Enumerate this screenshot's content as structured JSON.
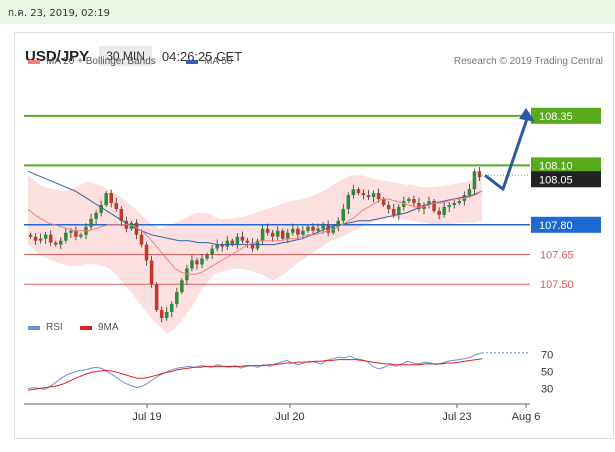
{
  "timestamp": "ก.ค. 23, 2019, 02:19",
  "header": {
    "symbol": "USD/JPY",
    "timeframe": "30 MIN",
    "time": "04:26:25 CET"
  },
  "legend": {
    "ma20": "MA 20 + Bollinger Bands",
    "ma50": "MA 50",
    "rsi": "RSI",
    "ma9": "9MA"
  },
  "research": "Research © 2019 Trading Central",
  "colors": {
    "up": "#2e8b3a",
    "down": "#c0392b",
    "ma20": "#f08080",
    "ma50": "#3a5fa8",
    "band": "#fcd9d9",
    "green": "#5aaa1e",
    "blue": "#1e6ad2",
    "red": "#e35b5b"
  },
  "chart_data": [
    {
      "type": "candlestick",
      "title": "USD/JPY 30 MIN",
      "ylim": [
        107.37,
        108.44
      ],
      "x_ticks": [
        "Jul 19",
        "Jul 20",
        "Jul 23",
        "Aug 6"
      ],
      "levels": [
        {
          "value": 108.35,
          "label": "108.35",
          "style": "green-line",
          "box": "green"
        },
        {
          "value": 108.1,
          "label": "108.10",
          "style": "green-line",
          "box": "green"
        },
        {
          "value": 108.05,
          "label": "108.05",
          "style": "dotted",
          "box": "black"
        },
        {
          "value": 107.8,
          "label": "107.80",
          "style": "blue-line",
          "box": "blue"
        },
        {
          "value": 107.65,
          "label": "107.65",
          "style": "red-line",
          "box": "none"
        },
        {
          "value": 107.5,
          "label": "107.50",
          "style": "red-line",
          "box": "none"
        }
      ],
      "close": [
        107.74,
        107.72,
        107.73,
        107.75,
        107.71,
        107.7,
        107.72,
        107.76,
        107.77,
        107.74,
        107.75,
        107.79,
        107.83,
        107.86,
        107.9,
        107.96,
        107.91,
        107.88,
        107.82,
        107.78,
        107.81,
        107.75,
        107.7,
        107.62,
        107.5,
        107.37,
        107.33,
        107.36,
        107.4,
        107.46,
        107.52,
        107.58,
        107.62,
        107.6,
        107.63,
        107.65,
        107.68,
        107.7,
        107.69,
        107.72,
        107.7,
        107.74,
        107.72,
        107.71,
        107.68,
        107.72,
        107.78,
        107.76,
        107.74,
        107.77,
        107.73,
        107.76,
        107.78,
        107.75,
        107.77,
        107.79,
        107.77,
        107.78,
        107.8,
        107.76,
        107.79,
        107.82,
        107.88,
        107.95,
        107.98,
        107.96,
        107.95,
        107.94,
        107.96,
        107.93,
        107.9,
        107.88,
        107.85,
        107.89,
        107.92,
        107.93,
        107.91,
        107.88,
        107.9,
        107.92,
        107.87,
        107.85,
        107.89,
        107.9,
        107.91,
        107.92,
        107.95,
        107.98,
        108.07,
        108.04
      ],
      "ma20": [
        107.88,
        107.85,
        107.83,
        107.81,
        107.8,
        107.79,
        107.78,
        107.77,
        107.77,
        107.77,
        107.78,
        107.79,
        107.8,
        107.8,
        107.8,
        107.8,
        107.79,
        107.77,
        107.74,
        107.7,
        107.66,
        107.62,
        107.58,
        107.56,
        107.55,
        107.55,
        107.56,
        107.58,
        107.6,
        107.62,
        107.64,
        107.66,
        107.68,
        107.7,
        107.71,
        107.72,
        107.72,
        107.72,
        107.72,
        107.73,
        107.73,
        107.74,
        107.75,
        107.75,
        107.76,
        107.77,
        107.78,
        107.8,
        107.82,
        107.84,
        107.87,
        107.89,
        107.91,
        107.93,
        107.93,
        107.92,
        107.91,
        107.9,
        107.89,
        107.89,
        107.9,
        107.91,
        107.91,
        107.92,
        107.93,
        107.93,
        107.94,
        107.95,
        107.97
      ],
      "ma50": [
        108.07,
        108.05,
        108.03,
        108.01,
        107.99,
        107.97,
        107.94,
        107.91,
        107.88,
        107.85,
        107.82,
        107.79,
        107.77,
        107.75,
        107.74,
        107.73,
        107.72,
        107.72,
        107.71,
        107.71,
        107.7,
        107.7,
        107.7,
        107.7,
        107.7,
        107.7,
        107.7,
        107.71,
        107.72,
        107.73,
        107.75,
        107.77,
        107.79,
        107.8,
        107.81,
        107.82,
        107.82,
        107.83,
        107.84,
        107.85,
        107.86,
        107.88,
        107.9,
        107.91,
        107.92,
        107.93,
        107.94,
        107.95,
        107.97
      ],
      "bb_upper": [
        108.05,
        108.0,
        107.98,
        107.97,
        107.99,
        108.02,
        108.0,
        107.97,
        107.93,
        107.88,
        107.82,
        107.78,
        107.8,
        107.83,
        107.86,
        107.86,
        107.83,
        107.83,
        107.84,
        107.86,
        107.88,
        107.9,
        107.92,
        107.93,
        107.95,
        107.98,
        108.02,
        108.05,
        108.05,
        108.03,
        108.02,
        108.01,
        108.0,
        107.99,
        107.99,
        108.0,
        108.01,
        108.02,
        108.04
      ],
      "bb_lower": [
        107.7,
        107.65,
        107.62,
        107.6,
        107.59,
        107.6,
        107.6,
        107.58,
        107.52,
        107.45,
        107.37,
        107.3,
        107.25,
        107.3,
        107.38,
        107.48,
        107.55,
        107.57,
        107.58,
        107.57,
        107.55,
        107.52,
        107.55,
        107.6,
        107.64,
        107.68,
        107.72,
        107.74,
        107.77,
        107.8,
        107.82,
        107.84,
        107.83,
        107.82,
        107.81,
        107.8,
        107.8,
        107.81,
        107.81,
        107.82
      ],
      "forecast_path": [
        108.05,
        107.98,
        108.35
      ]
    },
    {
      "type": "line",
      "title": "RSI",
      "ylim": [
        20,
        80
      ],
      "y_ticks": [
        "70",
        "50",
        "30"
      ],
      "x_ticks": [
        "Jul 19",
        "Jul 20",
        "Jul 23",
        "Aug 6"
      ],
      "rsi": [
        30,
        31,
        30,
        29,
        33,
        38,
        43,
        47,
        49,
        51,
        52,
        54,
        55,
        53,
        49,
        45,
        40,
        36,
        33,
        31,
        33,
        37,
        42,
        46,
        49,
        52,
        54,
        55,
        56,
        55,
        57,
        56,
        55,
        58,
        56,
        55,
        57,
        54,
        56,
        57,
        55,
        58,
        56,
        59,
        61,
        63,
        60,
        58,
        60,
        62,
        61,
        59,
        63,
        65,
        67,
        66,
        68,
        65,
        64,
        62,
        56,
        53,
        55,
        58,
        56,
        59,
        62,
        60,
        59,
        61,
        60,
        58,
        60,
        62,
        63,
        64,
        65,
        67,
        70,
        72
      ],
      "ma9": [
        28,
        29,
        30,
        31,
        32,
        33,
        35,
        38,
        41,
        44,
        47,
        49,
        50,
        51,
        51,
        50,
        48,
        46,
        44,
        42,
        42,
        43,
        45,
        47,
        49,
        50,
        52,
        53,
        54,
        55,
        55,
        56,
        56,
        56,
        56,
        56,
        56,
        56,
        57,
        57,
        57,
        57,
        58,
        58,
        59,
        60,
        60,
        61,
        61,
        61,
        62,
        62,
        63,
        63,
        64,
        64,
        64,
        64,
        63,
        62,
        61,
        60,
        59,
        59,
        58,
        58,
        58,
        58,
        58,
        59,
        59,
        59,
        59,
        60,
        60,
        61,
        62,
        63,
        64,
        65
      ]
    }
  ]
}
